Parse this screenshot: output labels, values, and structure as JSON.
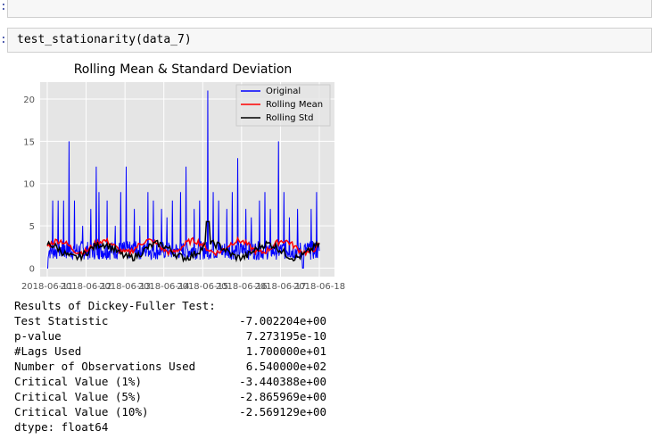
{
  "notebook": {
    "prompt_marker": ":",
    "code_cell": {
      "code": "test_stationarity(data_7)"
    }
  },
  "chart_data": {
    "type": "line",
    "title": "Rolling Mean & Standard Deviation",
    "xlabel": "",
    "ylabel": "",
    "x_ticks": [
      "2018-06-11",
      "2018-06-12",
      "2018-06-13",
      "2018-06-14",
      "2018-06-15",
      "2018-06-16",
      "2018-06-17",
      "2018-06-18"
    ],
    "y_ticks": [
      0,
      5,
      10,
      15,
      20
    ],
    "xlim": [
      "2018-06-11",
      "2018-06-18"
    ],
    "ylim": [
      -1,
      22
    ],
    "grid": true,
    "legend_position": "top-right",
    "series": [
      {
        "name": "Original",
        "color": "#0000ff"
      },
      {
        "name": "Rolling Mean",
        "color": "#ff0000"
      },
      {
        "name": "Rolling Std",
        "color": "#000000"
      }
    ],
    "original_spikes": [
      [
        0.02,
        8
      ],
      [
        0.04,
        8
      ],
      [
        0.06,
        8
      ],
      [
        0.08,
        15
      ],
      [
        0.1,
        8
      ],
      [
        0.13,
        5
      ],
      [
        0.16,
        7
      ],
      [
        0.18,
        12
      ],
      [
        0.19,
        9
      ],
      [
        0.22,
        8
      ],
      [
        0.25,
        5
      ],
      [
        0.27,
        9
      ],
      [
        0.29,
        12
      ],
      [
        0.32,
        7
      ],
      [
        0.34,
        5
      ],
      [
        0.37,
        9
      ],
      [
        0.39,
        8
      ],
      [
        0.42,
        7
      ],
      [
        0.44,
        6
      ],
      [
        0.46,
        8
      ],
      [
        0.49,
        9
      ],
      [
        0.51,
        12
      ],
      [
        0.54,
        7
      ],
      [
        0.56,
        8
      ],
      [
        0.59,
        21
      ],
      [
        0.61,
        9
      ],
      [
        0.63,
        8
      ],
      [
        0.66,
        7
      ],
      [
        0.68,
        9
      ],
      [
        0.7,
        13
      ],
      [
        0.73,
        7
      ],
      [
        0.75,
        6
      ],
      [
        0.78,
        8
      ],
      [
        0.8,
        9
      ],
      [
        0.82,
        7
      ],
      [
        0.85,
        15
      ],
      [
        0.87,
        9
      ],
      [
        0.89,
        6
      ],
      [
        0.92,
        7
      ],
      [
        0.94,
        9
      ],
      [
        0.97,
        7
      ],
      [
        0.99,
        9
      ]
    ]
  },
  "df_test": {
    "header": "Results of Dickey-Fuller Test:",
    "rows": [
      {
        "label": "Test Statistic",
        "value": "-7.002204e+00"
      },
      {
        "label": "p-value",
        "value": "7.273195e-10"
      },
      {
        "label": "#Lags Used",
        "value": "1.700000e+01"
      },
      {
        "label": "Number of Observations Used",
        "value": "6.540000e+02"
      },
      {
        "label": "Critical Value (1%)",
        "value": "-3.440388e+00"
      },
      {
        "label": "Critical Value (5%)",
        "value": "-2.865969e+00"
      },
      {
        "label": "Critical Value (10%)",
        "value": "-2.569129e+00"
      }
    ],
    "dtype": "dtype: float64"
  }
}
